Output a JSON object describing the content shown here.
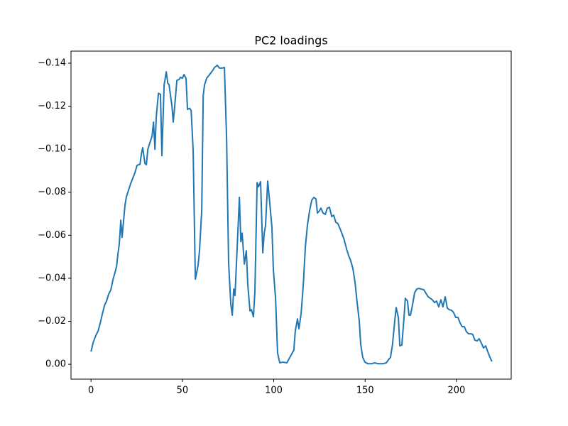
{
  "chart_data": {
    "type": "line",
    "title": "PC2 loadings",
    "x": [
      0,
      1.2,
      2.7,
      3.9,
      5,
      6.2,
      7.4,
      8.5,
      9.7,
      10.9,
      12,
      13.2,
      14,
      14.8,
      15.5,
      16.3,
      17,
      18.6,
      19.4,
      21.7,
      24,
      25.2,
      26.8,
      27.6,
      28.3,
      29.5,
      30.3,
      31.1,
      32.6,
      33.4,
      34.2,
      35,
      35.7,
      36.9,
      38,
      38.8,
      40,
      41.2,
      42,
      42.7,
      44.3,
      45,
      45.8,
      47,
      48.2,
      48.9,
      50,
      50.9,
      52,
      52.8,
      54,
      54.8,
      55.9,
      57.1,
      58.6,
      59.4,
      60.6,
      61.4,
      62.1,
      63.3,
      64.9,
      66.4,
      67.6,
      69.1,
      70.3,
      71.8,
      73,
      74.2,
      75.3,
      76.5,
      77.3,
      78.1,
      78.8,
      80,
      81.2,
      82,
      82.7,
      83.9,
      85,
      85.8,
      87,
      87.8,
      88.9,
      89.7,
      90.9,
      91.7,
      92.8,
      94,
      94.8,
      95.5,
      96.7,
      97.9,
      99,
      99.8,
      101,
      102.1,
      103.3,
      104.9,
      107.2,
      109.5,
      111,
      111.8,
      113,
      113.8,
      115,
      116.2,
      117.3,
      118.4,
      119.6,
      120.8,
      122,
      123.1,
      123.9,
      125,
      125.8,
      127,
      128.2,
      129.3,
      130.5,
      131.7,
      132.8,
      134,
      135.1,
      136.3,
      137.5,
      138.6,
      139.8,
      141,
      142.1,
      143.3,
      144.5,
      145.6,
      146.8,
      147.6,
      148.7,
      149.9,
      151.5,
      153.8,
      155.3,
      156.9,
      160,
      161.6,
      162.7,
      163.9,
      165,
      166.2,
      167,
      168.2,
      169,
      170.1,
      171.3,
      172,
      173.2,
      174,
      174.8,
      175.9,
      177.1,
      178.3,
      179.4,
      180.6,
      182.1,
      183.3,
      184.5,
      185.6,
      186.8,
      188,
      189.1,
      190.3,
      191.5,
      192.6,
      193.8,
      195,
      196.1,
      197.3,
      198.4,
      199.6,
      200.8,
      202,
      203.1,
      204.3,
      205.4,
      206.6,
      207.8,
      208.9,
      210.1,
      211.3,
      212.4,
      213.6,
      214.8,
      216,
      217.1,
      218.3,
      219.4
    ],
    "series": [
      {
        "color": "#1f77b4",
        "values": [
          -0.0059,
          -0.0102,
          -0.0135,
          -0.0155,
          -0.019,
          -0.0234,
          -0.0274,
          -0.0294,
          -0.0327,
          -0.0347,
          -0.0393,
          -0.0429,
          -0.0456,
          -0.0518,
          -0.0561,
          -0.067,
          -0.059,
          -0.074,
          -0.078,
          -0.084,
          -0.089,
          -0.0925,
          -0.093,
          -0.098,
          -0.1007,
          -0.0934,
          -0.0928,
          -0.1,
          -0.104,
          -0.106,
          -0.1126,
          -0.1,
          -0.115,
          -0.126,
          -0.1255,
          -0.097,
          -0.1298,
          -0.136,
          -0.1307,
          -0.13,
          -0.12,
          -0.1126,
          -0.12,
          -0.132,
          -0.1324,
          -0.1334,
          -0.133,
          -0.1347,
          -0.133,
          -0.1185,
          -0.119,
          -0.118,
          -0.0994,
          -0.0396,
          -0.046,
          -0.053,
          -0.0717,
          -0.1248,
          -0.1298,
          -0.133,
          -0.1347,
          -0.1364,
          -0.138,
          -0.139,
          -0.1377,
          -0.1377,
          -0.138,
          -0.105,
          -0.0472,
          -0.028,
          -0.0228,
          -0.035,
          -0.032,
          -0.0545,
          -0.0776,
          -0.057,
          -0.061,
          -0.0466,
          -0.0528,
          -0.037,
          -0.0248,
          -0.0254,
          -0.0221,
          -0.034,
          -0.0845,
          -0.0825,
          -0.0849,
          -0.0518,
          -0.061,
          -0.0644,
          -0.0852,
          -0.0743,
          -0.0637,
          -0.0439,
          -0.0307,
          -0.0053,
          -0.0007,
          -0.001,
          -0.0007,
          -0.0043,
          -0.0066,
          -0.0155,
          -0.0211,
          -0.0165,
          -0.0238,
          -0.0373,
          -0.0545,
          -0.0644,
          -0.0713,
          -0.0763,
          -0.0776,
          -0.0769,
          -0.0703,
          -0.0713,
          -0.0726,
          -0.0703,
          -0.0697,
          -0.0726,
          -0.073,
          -0.0687,
          -0.0693,
          -0.066,
          -0.0654,
          -0.063,
          -0.0604,
          -0.0578,
          -0.0538,
          -0.0505,
          -0.0482,
          -0.0446,
          -0.038,
          -0.029,
          -0.0201,
          -0.0092,
          -0.0033,
          -0.001,
          -0.0003,
          -0.0003,
          -0.0007,
          -0.0003,
          -0.0003,
          -0.0007,
          -0.002,
          -0.0033,
          -0.0092,
          -0.0201,
          -0.0264,
          -0.0218,
          -0.0086,
          -0.0089,
          -0.0218,
          -0.0307,
          -0.0294,
          -0.0228,
          -0.0228,
          -0.0274,
          -0.0333,
          -0.035,
          -0.0353,
          -0.035,
          -0.0347,
          -0.033,
          -0.0314,
          -0.0307,
          -0.03,
          -0.0287,
          -0.0294,
          -0.0267,
          -0.03,
          -0.0267,
          -0.0314,
          -0.0261,
          -0.0254,
          -0.0251,
          -0.0241,
          -0.0218,
          -0.0218,
          -0.0192,
          -0.0175,
          -0.0175,
          -0.0152,
          -0.0142,
          -0.0142,
          -0.0139,
          -0.0112,
          -0.0109,
          -0.0119,
          -0.0099,
          -0.0076,
          -0.0086,
          -0.0059,
          -0.0033,
          -0.0013
        ]
      }
    ],
    "xlim": [
      -10.95,
      229.95
    ],
    "xticks": [
      0,
      50,
      100,
      150,
      200
    ],
    "ylim": [
      0.0069,
      -0.1456
    ],
    "yticks": [
      {
        "value": 0,
        "label": "0.00"
      },
      {
        "value": -0.02,
        "label": "−0.02"
      },
      {
        "value": -0.04,
        "label": "−0.04"
      },
      {
        "value": -0.06,
        "label": "−0.06"
      },
      {
        "value": -0.08,
        "label": "−0.08"
      },
      {
        "value": -0.1,
        "label": "−0.10"
      },
      {
        "value": -0.12,
        "label": "−0.12"
      },
      {
        "value": -0.14,
        "label": "−0.14"
      }
    ],
    "grid": false
  }
}
